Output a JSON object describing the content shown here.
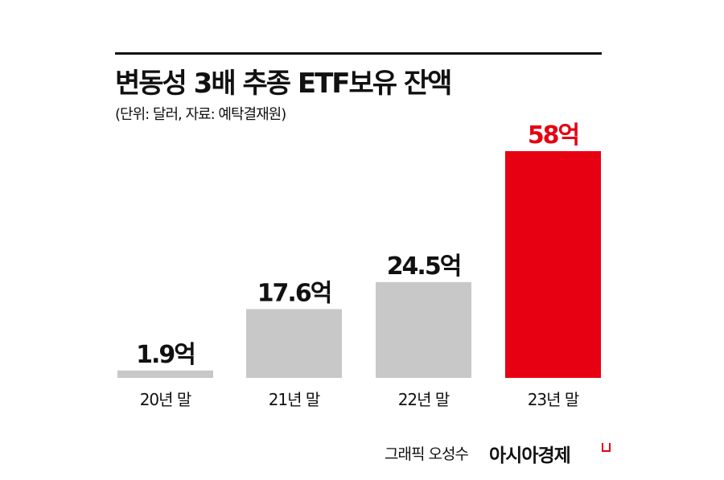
{
  "chart_data": {
    "type": "bar",
    "title": "변동성 3배 추종 ETF보유 잔액",
    "subtitle": "(단위: 달러, 자료: 예탁결재원)",
    "categories": [
      "20년 말",
      "21년 말",
      "22년 말",
      "23년 말"
    ],
    "values": [
      1.9,
      17.6,
      24.5,
      58
    ],
    "data_labels": [
      "1.9억",
      "17.6억",
      "24.5억",
      "58억"
    ],
    "colors": [
      "#c8c8c8",
      "#c8c8c8",
      "#c8c8c8",
      "#e60012"
    ],
    "label_colors": [
      "#111111",
      "#111111",
      "#111111",
      "#e60012"
    ],
    "ylim": [
      0,
      58
    ],
    "grid": false
  },
  "footer": {
    "credit": "그래픽 오성수",
    "brand": "아시아경제"
  }
}
